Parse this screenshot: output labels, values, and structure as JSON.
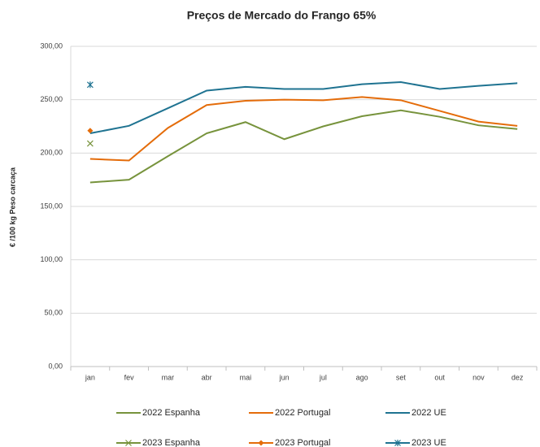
{
  "chart_data": {
    "type": "line",
    "title": "Preços de Mercado do Frango 65%",
    "y_label": "€ /100 kg Peso carcaça",
    "categories": [
      "jan",
      "fev",
      "mar",
      "abr",
      "mai",
      "jun",
      "jul",
      "ago",
      "set",
      "out",
      "nov",
      "dez"
    ],
    "ylim": [
      0,
      300
    ],
    "yticks": [
      {
        "value": 0,
        "label": "0,00"
      },
      {
        "value": 50,
        "label": "50,00"
      },
      {
        "value": 100,
        "label": "100,00"
      },
      {
        "value": 150,
        "label": "150,00"
      },
      {
        "value": 200,
        "label": "200,00"
      },
      {
        "value": 250,
        "label": "250,00"
      },
      {
        "value": 300,
        "label": "300,00"
      }
    ],
    "grid": true,
    "legend": "bottom",
    "series": [
      {
        "name": "2022 Espanha",
        "color": "#77933c",
        "values": [
          172.5,
          175,
          197,
          218.5,
          229,
          213,
          225,
          234.5,
          240,
          234,
          226,
          222.5
        ]
      },
      {
        "name": "2022 Portugal",
        "color": "#e46c0a",
        "values": [
          194.5,
          193,
          223.5,
          245,
          249,
          250,
          249.5,
          252.5,
          249.5,
          239.5,
          229.5,
          225.5
        ]
      },
      {
        "name": "2022 UE",
        "color": "#1f7391",
        "values": [
          218.5,
          225.5,
          242,
          258.5,
          262,
          260,
          260,
          264.5,
          266.5,
          260,
          263,
          265.5
        ]
      },
      {
        "name": "2023 Espanha",
        "color": "#77933c",
        "marker": "x",
        "values": [
          209,
          null,
          null,
          null,
          null,
          null,
          null,
          null,
          null,
          null,
          null,
          null
        ]
      },
      {
        "name": "2023 Portugal",
        "color": "#e46c0a",
        "marker": "diamond",
        "values": [
          221,
          null,
          null,
          null,
          null,
          null,
          null,
          null,
          null,
          null,
          null,
          null
        ]
      },
      {
        "name": "2023 UE",
        "color": "#1f7391",
        "marker": "asterisk",
        "values": [
          264,
          null,
          null,
          null,
          null,
          null,
          null,
          null,
          null,
          null,
          null,
          null
        ]
      }
    ]
  }
}
